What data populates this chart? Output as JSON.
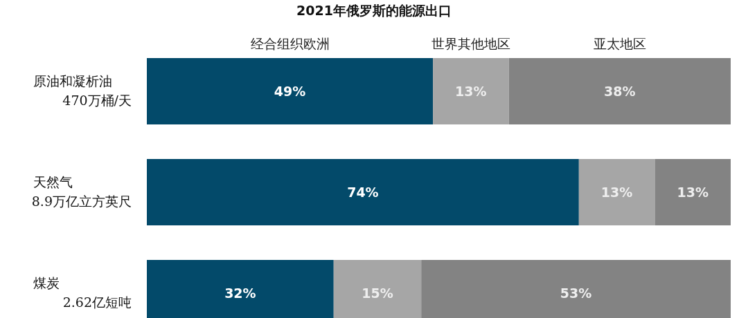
{
  "chart_data": {
    "type": "bar",
    "orientation": "horizontal",
    "stacked": true,
    "title": "2021年俄罗斯的能源出口",
    "categories": [
      "原油和凝析油\n470万桶/天",
      "天然气\n8.9万亿立方英尺",
      "煤炭\n2.62亿短吨"
    ],
    "series": [
      {
        "name": "经合组织欧洲",
        "color": "#034a6a",
        "values": [
          49,
          74,
          32
        ],
        "value_labels": [
          "49%",
          "74%",
          "32%"
        ]
      },
      {
        "name": "世界其他地区",
        "color": "#a6a6a6",
        "values": [
          13,
          13,
          15
        ],
        "value_labels": [
          "13%",
          "13%",
          "15%"
        ]
      },
      {
        "name": "亚太地区",
        "color": "#838383",
        "values": [
          38,
          13,
          53
        ],
        "value_labels": [
          "38%",
          "13%",
          "53%"
        ]
      }
    ],
    "xlim": [
      0,
      100
    ],
    "legend": "top"
  }
}
